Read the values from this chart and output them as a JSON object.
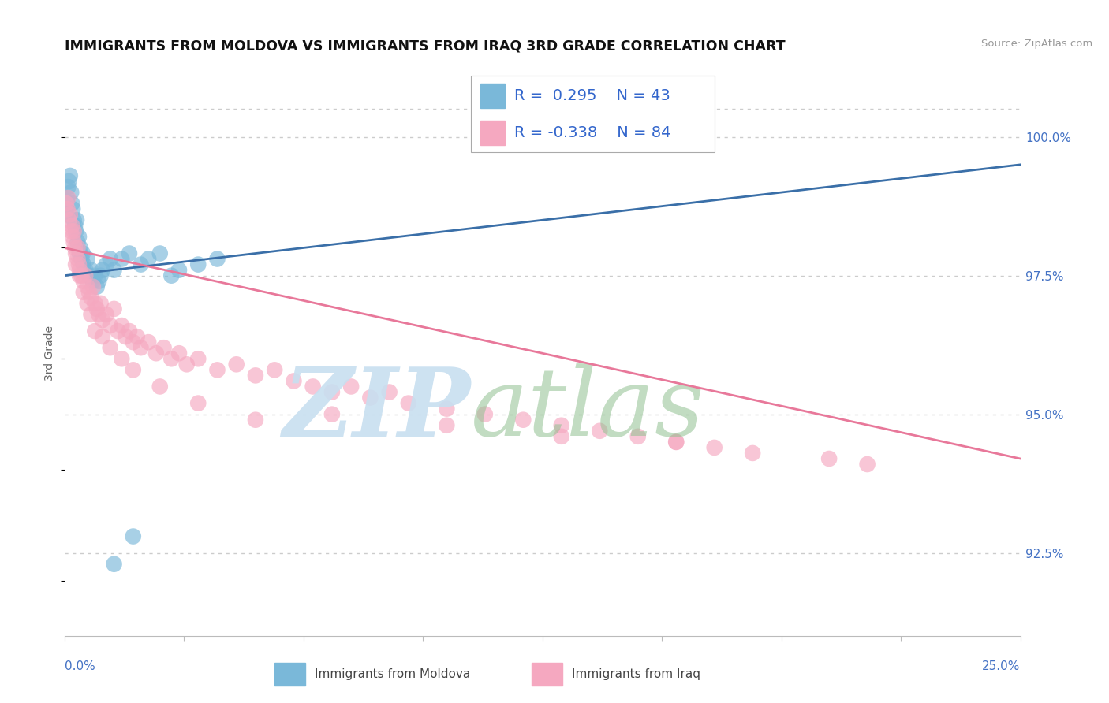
{
  "title": "IMMIGRANTS FROM MOLDOVA VS IMMIGRANTS FROM IRAQ 3RD GRADE CORRELATION CHART",
  "source_text": "Source: ZipAtlas.com",
  "ylabel": "3rd Grade",
  "xlim": [
    0.0,
    25.0
  ],
  "ylim": [
    91.0,
    101.2
  ],
  "ytick_vals": [
    92.5,
    95.0,
    97.5,
    100.0
  ],
  "legend_moldova": "Immigrants from Moldova",
  "legend_iraq": "Immigrants from Iraq",
  "moldova_R": 0.295,
  "moldova_N": 43,
  "iraq_R": -0.338,
  "iraq_N": 84,
  "moldova_color": "#7ab8d9",
  "iraq_color": "#f5a8c0",
  "moldova_line_color": "#3a6fa8",
  "iraq_line_color": "#e8789a",
  "title_fontsize": 12.5,
  "moldova_x": [
    0.05,
    0.08,
    0.1,
    0.12,
    0.15,
    0.18,
    0.2,
    0.22,
    0.25,
    0.28,
    0.3,
    0.32,
    0.35,
    0.38,
    0.4,
    0.42,
    0.45,
    0.48,
    0.5,
    0.55,
    0.6,
    0.65,
    0.7,
    0.75,
    0.8,
    0.85,
    0.9,
    0.95,
    1.0,
    1.1,
    1.2,
    1.3,
    1.5,
    1.7,
    2.0,
    2.2,
    2.5,
    3.0,
    3.5,
    4.0,
    1.8,
    1.3,
    2.8
  ],
  "moldova_y": [
    98.6,
    98.9,
    99.1,
    99.2,
    99.3,
    99.0,
    98.8,
    98.7,
    98.5,
    98.4,
    98.3,
    98.5,
    98.1,
    98.2,
    97.9,
    98.0,
    97.8,
    97.9,
    97.7,
    97.6,
    97.8,
    97.5,
    97.6,
    97.4,
    97.5,
    97.3,
    97.4,
    97.5,
    97.6,
    97.7,
    97.8,
    97.6,
    97.8,
    97.9,
    97.7,
    97.8,
    97.9,
    97.6,
    97.7,
    97.8,
    92.8,
    92.3,
    97.5
  ],
  "iraq_x": [
    0.05,
    0.08,
    0.1,
    0.12,
    0.15,
    0.18,
    0.2,
    0.22,
    0.25,
    0.28,
    0.3,
    0.35,
    0.38,
    0.4,
    0.45,
    0.5,
    0.55,
    0.6,
    0.65,
    0.7,
    0.75,
    0.8,
    0.85,
    0.9,
    0.95,
    1.0,
    1.1,
    1.2,
    1.3,
    1.4,
    1.5,
    1.6,
    1.7,
    1.8,
    1.9,
    2.0,
    2.2,
    2.4,
    2.6,
    2.8,
    3.0,
    3.2,
    3.5,
    4.0,
    4.5,
    5.0,
    5.5,
    6.0,
    6.5,
    7.0,
    7.5,
    8.0,
    8.5,
    9.0,
    10.0,
    11.0,
    12.0,
    13.0,
    14.0,
    15.0,
    16.0,
    17.0,
    18.0,
    20.0,
    21.0,
    0.25,
    0.3,
    0.35,
    0.4,
    0.5,
    0.6,
    0.7,
    0.8,
    1.0,
    1.2,
    1.5,
    1.8,
    2.5,
    3.5,
    5.0,
    7.0,
    10.0,
    13.0,
    16.0
  ],
  "iraq_y": [
    98.8,
    98.7,
    98.9,
    98.5,
    98.6,
    98.3,
    98.4,
    98.2,
    98.1,
    98.0,
    97.9,
    97.8,
    97.7,
    97.6,
    97.5,
    97.4,
    97.5,
    97.3,
    97.2,
    97.1,
    97.3,
    97.0,
    96.9,
    96.8,
    97.0,
    96.7,
    96.8,
    96.6,
    96.9,
    96.5,
    96.6,
    96.4,
    96.5,
    96.3,
    96.4,
    96.2,
    96.3,
    96.1,
    96.2,
    96.0,
    96.1,
    95.9,
    96.0,
    95.8,
    95.9,
    95.7,
    95.8,
    95.6,
    95.5,
    95.4,
    95.5,
    95.3,
    95.4,
    95.2,
    95.1,
    95.0,
    94.9,
    94.8,
    94.7,
    94.6,
    94.5,
    94.4,
    94.3,
    94.2,
    94.1,
    98.3,
    97.7,
    98.0,
    97.5,
    97.2,
    97.0,
    96.8,
    96.5,
    96.4,
    96.2,
    96.0,
    95.8,
    95.5,
    95.2,
    94.9,
    95.0,
    94.8,
    94.6,
    94.5
  ]
}
